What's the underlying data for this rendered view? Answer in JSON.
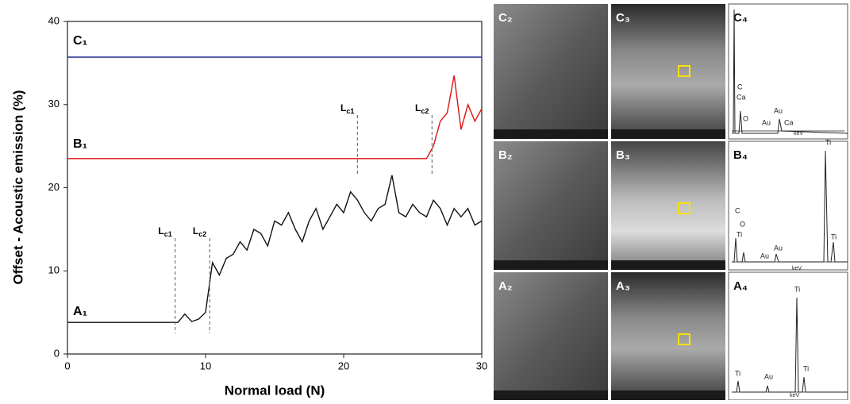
{
  "chart_data": {
    "type": "line",
    "ylabel": "Offset - Acoustic emission (%)",
    "xlabel": "Normal load (N)",
    "xlim": [
      0,
      30
    ],
    "ylim": [
      0,
      40
    ],
    "xticks": [
      0,
      10,
      20,
      30
    ],
    "yticks": [
      0,
      10,
      20,
      30,
      40
    ],
    "x": [
      0,
      0.5,
      1,
      1.5,
      2,
      2.5,
      3,
      3.5,
      4,
      4.5,
      5,
      5.5,
      6,
      6.5,
      7,
      7.5,
      8,
      8.5,
      9,
      9.5,
      10,
      10.5,
      11,
      11.5,
      12,
      12.5,
      13,
      13.5,
      14,
      14.5,
      15,
      15.5,
      16,
      16.5,
      17,
      17.5,
      18,
      18.5,
      19,
      19.5,
      20,
      20.5,
      21,
      21.5,
      22,
      22.5,
      23,
      23.5,
      24,
      24.5,
      25,
      25.5,
      26,
      26.5,
      27,
      27.5,
      28,
      28.5,
      29,
      29.5,
      30
    ],
    "series": [
      {
        "name": "C₁",
        "color": "#1f2a8c",
        "values": [
          35.7,
          35.7,
          35.7,
          35.7,
          35.7,
          35.7,
          35.7,
          35.7,
          35.7,
          35.7,
          35.7,
          35.7,
          35.7,
          35.7,
          35.7,
          35.7,
          35.7,
          35.7,
          35.7,
          35.7,
          35.7,
          35.7,
          35.7,
          35.7,
          35.7,
          35.7,
          35.7,
          35.7,
          35.7,
          35.7,
          35.7,
          35.7,
          35.7,
          35.7,
          35.7,
          35.7,
          35.7,
          35.7,
          35.7,
          35.7,
          35.7,
          35.7,
          35.7,
          35.7,
          35.7,
          35.7,
          35.7,
          35.7,
          35.7,
          35.7,
          35.7,
          35.7,
          35.7,
          35.7,
          35.7,
          35.7,
          35.7,
          35.7,
          35.7,
          35.7,
          35.7
        ]
      },
      {
        "name": "B₁",
        "color": "#e01010",
        "values": [
          23.5,
          23.5,
          23.5,
          23.5,
          23.5,
          23.5,
          23.5,
          23.5,
          23.5,
          23.5,
          23.5,
          23.5,
          23.5,
          23.5,
          23.5,
          23.5,
          23.5,
          23.5,
          23.5,
          23.5,
          23.5,
          23.5,
          23.5,
          23.5,
          23.5,
          23.5,
          23.5,
          23.5,
          23.5,
          23.5,
          23.5,
          23.5,
          23.5,
          23.5,
          23.5,
          23.5,
          23.5,
          23.5,
          23.5,
          23.5,
          23.5,
          23.5,
          23.5,
          23.5,
          23.5,
          23.5,
          23.5,
          23.5,
          23.5,
          23.5,
          23.5,
          23.5,
          23.5,
          25,
          28,
          29,
          33.5,
          27,
          30,
          28,
          29.5
        ]
      },
      {
        "name": "A₁",
        "color": "#111111",
        "values": [
          3.8,
          3.8,
          3.8,
          3.8,
          3.8,
          3.8,
          3.8,
          3.8,
          3.8,
          3.8,
          3.8,
          3.8,
          3.8,
          3.8,
          3.8,
          3.8,
          3.8,
          4.8,
          3.9,
          4.2,
          5.0,
          11,
          9.5,
          11.5,
          12,
          13.5,
          12.5,
          15,
          14.5,
          13,
          16,
          15.5,
          17,
          15,
          13.5,
          16,
          17.5,
          15,
          16.5,
          18,
          17,
          19.5,
          18.5,
          17,
          16,
          17.5,
          18,
          21.5,
          17,
          16.5,
          18,
          17,
          16.5,
          18.5,
          17.5,
          15.5,
          17.5,
          16.5,
          17.5,
          15.5,
          16
        ]
      }
    ],
    "annotations": [
      {
        "text": "L",
        "sub": "c1",
        "x": 7.8
      },
      {
        "text": "L",
        "sub": "c2",
        "x": 10.3
      },
      {
        "text": "L",
        "sub": "c1",
        "x": 21
      },
      {
        "text": "L",
        "sub": "c2",
        "x": 26.4
      }
    ]
  },
  "panels": [
    "C₂",
    "C₃",
    "C₄",
    "B₂",
    "B₃",
    "B₄",
    "A₂",
    "A₃",
    "A₄"
  ],
  "spectra": [
    [
      "C",
      "Ca",
      "O",
      "Au",
      "Au",
      "Ca",
      "keV"
    ],
    [
      "Ti",
      "C",
      "O",
      "Ti",
      "Au",
      "Au",
      "Ti",
      "keV"
    ],
    [
      "Ti",
      "Ti",
      "Au",
      "Ti",
      "keV"
    ]
  ]
}
